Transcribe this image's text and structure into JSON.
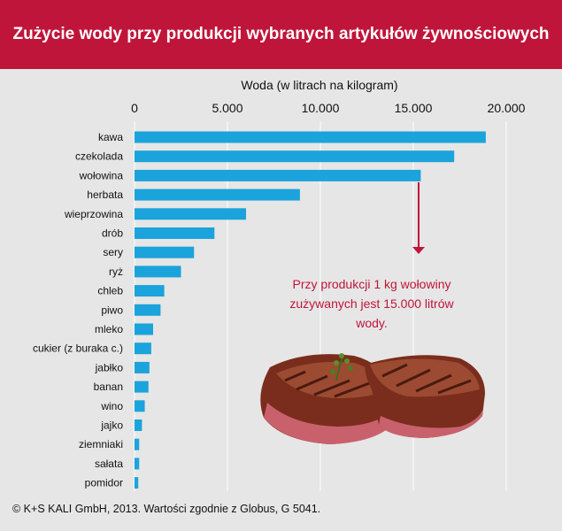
{
  "title": "Zużycie wody przy produkcji wybranych artykułów żywnościowych",
  "source": "© K+S KALI GmbH, 2013. Wartości zgodnie z Globus, G 5041.",
  "annotation": {
    "lines": [
      "Przy produkcji 1 kg wołowiny",
      "zużywanych jest 15.000 litrów",
      "wody."
    ],
    "color": "#c0153a"
  },
  "colors": {
    "bar": "#1ba3dc",
    "header": "#c0153a",
    "grid": "#ffffff",
    "background": "#e6e6e6"
  },
  "chart_data": {
    "type": "bar",
    "orientation": "horizontal",
    "title": "Zużycie wody przy produkcji wybranych artykułów żywnościowych",
    "xlabel": "Woda (w litrach na kilogram)",
    "xlim": [
      0,
      20000
    ],
    "xticks": [
      0,
      5000,
      10000,
      15000,
      20000
    ],
    "xtick_labels": [
      "0",
      "5.000",
      "10.000",
      "15.000",
      "20.000"
    ],
    "grid": true,
    "categories": [
      "kawa",
      "czekolada",
      "wołowina",
      "herbata",
      "wieprzowina",
      "drób",
      "sery",
      "ryż",
      "chleb",
      "piwo",
      "mleko",
      "cukier (z buraka c.)",
      "jabłko",
      "banan",
      "wino",
      "jajko",
      "ziemniaki",
      "sałata",
      "pomidor"
    ],
    "values": [
      18900,
      17200,
      15400,
      8900,
      6000,
      4300,
      3200,
      2500,
      1600,
      1400,
      1000,
      900,
      800,
      750,
      550,
      400,
      250,
      250,
      200
    ]
  }
}
